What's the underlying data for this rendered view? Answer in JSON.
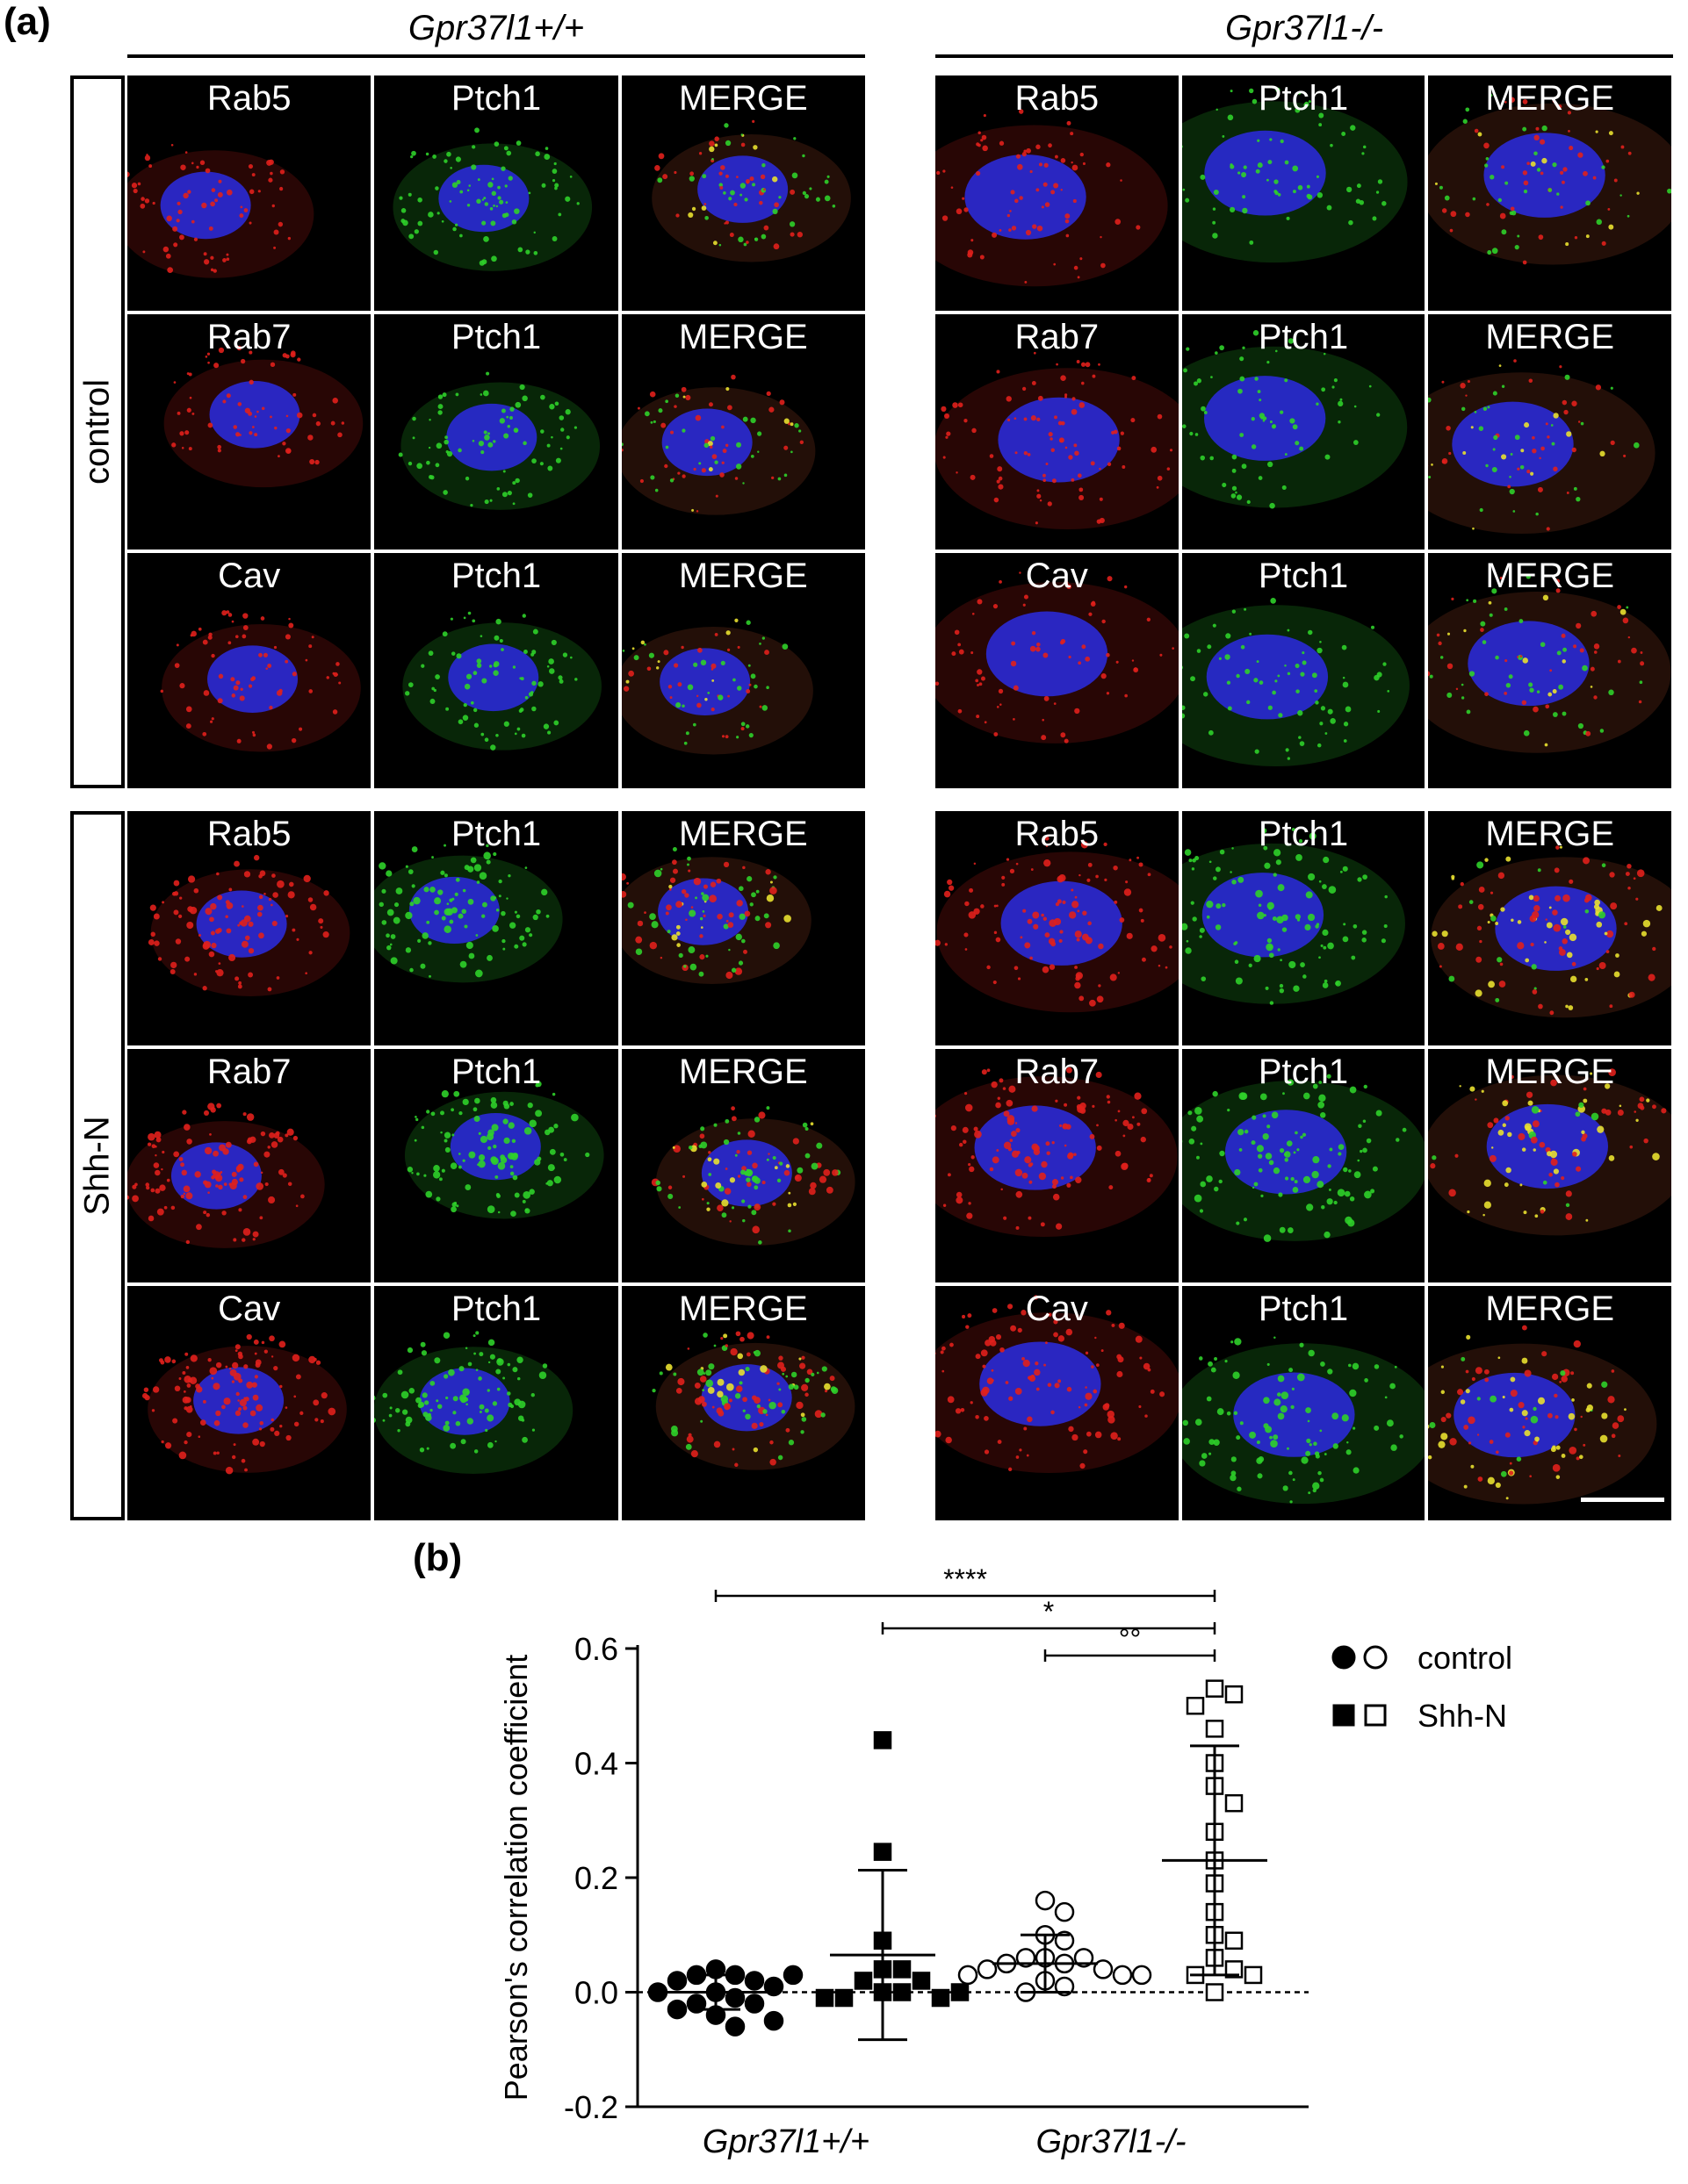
{
  "panel_a": {
    "letter": "(a)",
    "genotypes": [
      "Gpr37l1+/+",
      "Gpr37l1-/-"
    ],
    "conditions": [
      "control",
      "Shh-N"
    ],
    "rows": [
      {
        "condition": "control",
        "marker": "Rab5",
        "channels": [
          "Rab5",
          "Ptch1",
          "MERGE"
        ]
      },
      {
        "condition": "control",
        "marker": "Rab7",
        "channels": [
          "Rab7",
          "Ptch1",
          "MERGE"
        ]
      },
      {
        "condition": "control",
        "marker": "Cav",
        "channels": [
          "Cav",
          "Ptch1",
          "MERGE"
        ]
      },
      {
        "condition": "Shh-N",
        "marker": "Rab5",
        "channels": [
          "Rab5",
          "Ptch1",
          "MERGE"
        ]
      },
      {
        "condition": "Shh-N",
        "marker": "Rab7",
        "channels": [
          "Rab7",
          "Ptch1",
          "MERGE"
        ]
      },
      {
        "condition": "Shh-N",
        "marker": "Cav",
        "channels": [
          "Cav",
          "Ptch1",
          "MERGE"
        ]
      }
    ],
    "colors": {
      "red": "#e0201c",
      "green": "#2fd02a",
      "blue": "#2a2ad6",
      "yellow": "#e8e030"
    }
  },
  "panel_b": {
    "letter": "(b)",
    "chart_data": {
      "type": "scatter",
      "title": "",
      "ylabel": "Pearson's correlation coefficient",
      "xlabel": "",
      "ylim": [
        -0.2,
        0.6
      ],
      "yticks": [
        -0.2,
        0.0,
        0.2,
        0.4,
        0.6
      ],
      "ytick_labels": [
        "-0.2",
        "0.0",
        "0.2",
        "0.4",
        "0.6"
      ],
      "group_labels": [
        "Gpr37l1+/+",
        "Gpr37l1-/-"
      ],
      "zero_line": "dashed",
      "legend": {
        "placement": "top-right",
        "entries": [
          {
            "label": "control",
            "markers": [
              "filled-circle",
              "open-circle"
            ]
          },
          {
            "label": "Shh-N",
            "markers": [
              "filled-square",
              "open-square"
            ]
          }
        ]
      },
      "series": [
        {
          "name": "control",
          "genotype": "Gpr37l1+/+",
          "marker": "filled-circle",
          "mean": 0.0,
          "sd": 0.03,
          "values": [
            0.04,
            0.03,
            0.03,
            0.02,
            0.02,
            0.01,
            0.0,
            0.0,
            -0.01,
            -0.02,
            -0.02,
            -0.03,
            -0.04,
            -0.06,
            -0.05,
            0.03
          ]
        },
        {
          "name": "Shh-N",
          "genotype": "Gpr37l1+/+",
          "marker": "filled-square",
          "mean": 0.065,
          "sd": 0.148,
          "values": [
            0.44,
            0.245,
            0.09,
            0.04,
            0.04,
            0.02,
            0.02,
            0.0,
            0.0,
            -0.01,
            -0.01,
            -0.01,
            0.0
          ]
        },
        {
          "name": "control",
          "genotype": "Gpr37l1-/-",
          "marker": "open-circle",
          "mean": 0.05,
          "sd": 0.05,
          "values": [
            0.16,
            0.14,
            0.1,
            0.09,
            0.06,
            0.06,
            0.06,
            0.05,
            0.05,
            0.04,
            0.04,
            0.03,
            0.03,
            0.02,
            0.01,
            0.0,
            0.03
          ]
        },
        {
          "name": "Shh-N",
          "genotype": "Gpr37l1-/-",
          "marker": "open-square",
          "mean": 0.23,
          "sd": 0.2,
          "values": [
            0.53,
            0.52,
            0.5,
            0.46,
            0.4,
            0.36,
            0.33,
            0.28,
            0.23,
            0.19,
            0.14,
            0.1,
            0.09,
            0.06,
            0.04,
            0.03,
            0.0,
            0.03
          ]
        }
      ],
      "significance": [
        {
          "label": "****",
          "from": "Gpr37l1+/+ control",
          "to": "Gpr37l1-/- Shh-N"
        },
        {
          "label": "*",
          "from": "Gpr37l1+/+ Shh-N",
          "to": "Gpr37l1-/- Shh-N"
        },
        {
          "label": "°°",
          "from": "Gpr37l1-/- control",
          "to": "Gpr37l1-/- Shh-N"
        }
      ]
    }
  }
}
